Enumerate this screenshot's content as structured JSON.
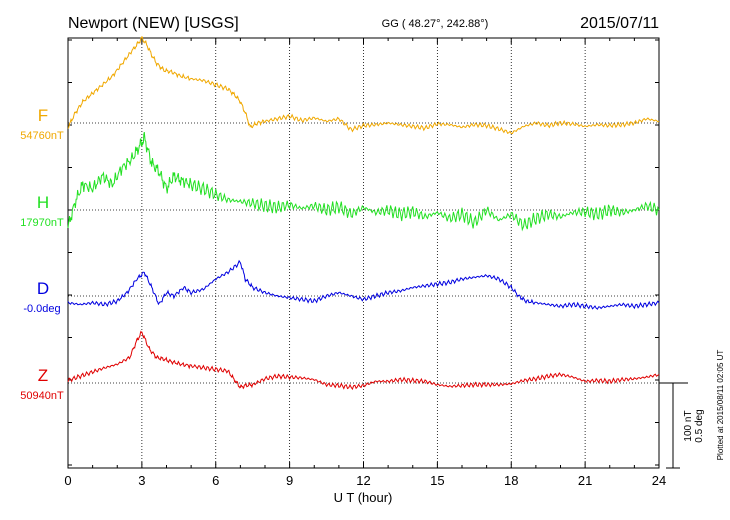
{
  "header": {
    "station": "Newport (NEW)  [USGS]",
    "coords": "GG ( 48.27°, 242.88°)",
    "date": "2015/07/11"
  },
  "side_note": "Plotted at 2015/08/11 02:05 UT",
  "scale_labels": [
    "100 nT",
    "0.5 deg"
  ],
  "colors": {
    "F": "#f0a800",
    "H": "#22e022",
    "D": "#0000e0",
    "Z": "#e00000"
  },
  "chart_data": {
    "type": "line",
    "title": "Newport (NEW)  [USGS]",
    "xlabel": "U T (hour)",
    "ylabel": "",
    "xlim": [
      0,
      24
    ],
    "x_ticks": [
      0,
      3,
      6,
      9,
      12,
      15,
      18,
      21,
      24
    ],
    "x_tick_labels": [
      "0",
      "3",
      "6",
      "9",
      "12",
      "15",
      "18",
      "21",
      "24"
    ],
    "grid": "vertical dotted every 3 h",
    "scale_bar": {
      "nT": 100,
      "deg": 0.5
    },
    "series": [
      {
        "name": "F",
        "baseline_label": "54760nT",
        "unit": "nT",
        "x": [
          0,
          0.3,
          0.6,
          1,
          1.4,
          1.8,
          2.2,
          2.6,
          2.8,
          3.0,
          3.2,
          3.4,
          3.6,
          3.9,
          4.2,
          4.6,
          5,
          5.5,
          6,
          6.5,
          6.8,
          7,
          7.2,
          7.4,
          7.7,
          8,
          8.5,
          9,
          9.5,
          10,
          10.5,
          11,
          11.5,
          12,
          12.5,
          13,
          13.5,
          14,
          14.5,
          15,
          15.5,
          16,
          16.5,
          17,
          17.5,
          18,
          18.5,
          19,
          19.5,
          20,
          20.5,
          21,
          21.5,
          22,
          22.5,
          23,
          23.5,
          24
        ],
        "y": [
          -5,
          12,
          25,
          35,
          45,
          55,
          70,
          85,
          92,
          100,
          92,
          80,
          70,
          62,
          60,
          55,
          52,
          50,
          45,
          40,
          32,
          25,
          12,
          -5,
          0,
          2,
          5,
          8,
          3,
          6,
          2,
          5,
          -8,
          -3,
          -2,
          0,
          -2,
          -4,
          -6,
          -1,
          -2,
          -5,
          -2,
          -3,
          -7,
          -12,
          -4,
          0,
          -3,
          0,
          -1,
          -4,
          -2,
          -3,
          -2,
          0,
          5,
          2
        ]
      },
      {
        "name": "H",
        "baseline_label": "17970nT",
        "unit": "nT",
        "x": [
          0,
          0.3,
          0.6,
          1,
          1.4,
          1.8,
          2.2,
          2.6,
          2.9,
          3.1,
          3.4,
          3.7,
          4.0,
          4.3,
          4.6,
          5,
          5.5,
          6,
          6.5,
          7,
          7.5,
          8,
          8.5,
          9,
          9.5,
          10,
          10.5,
          11,
          11.5,
          12,
          12.5,
          13,
          13.5,
          14,
          14.5,
          15,
          15.5,
          16,
          16.5,
          17,
          17.5,
          18,
          18.5,
          19,
          19.5,
          20,
          20.5,
          21,
          21.5,
          22,
          22.5,
          23,
          23.5,
          24
        ],
        "y": [
          -20,
          10,
          30,
          25,
          40,
          30,
          50,
          60,
          75,
          85,
          55,
          45,
          25,
          40,
          35,
          30,
          25,
          18,
          12,
          10,
          8,
          5,
          3,
          6,
          2,
          5,
          0,
          4,
          -5,
          3,
          -3,
          0,
          -5,
          -2,
          -8,
          -3,
          -10,
          -5,
          -15,
          0,
          -12,
          -5,
          -18,
          -10,
          -5,
          -8,
          -3,
          -2,
          -5,
          0,
          -3,
          0,
          5,
          0
        ]
      },
      {
        "name": "D",
        "baseline_label": "-0.0deg",
        "unit": "deg",
        "x": [
          0,
          0.5,
          1,
          1.5,
          2,
          2.4,
          2.8,
          3.1,
          3.4,
          3.7,
          4.0,
          4.3,
          4.7,
          5,
          5.5,
          6,
          6.5,
          7,
          7.2,
          7.5,
          8,
          8.5,
          9,
          9.5,
          10,
          10.5,
          11,
          11.5,
          12,
          12.5,
          13,
          13.5,
          14,
          14.5,
          15,
          15.5,
          16,
          16.5,
          17,
          17.5,
          18,
          18.3,
          18.6,
          19,
          19.5,
          20,
          20.5,
          21,
          21.5,
          22,
          22.5,
          23,
          23.5,
          24
        ],
        "y": [
          -0.04,
          -0.05,
          -0.04,
          -0.05,
          -0.03,
          0.02,
          0.1,
          0.14,
          0.05,
          -0.05,
          0.02,
          0.0,
          0.05,
          0.02,
          0.04,
          0.1,
          0.14,
          0.2,
          0.1,
          0.05,
          0.02,
          0.0,
          -0.01,
          -0.02,
          -0.03,
          0.0,
          0.02,
          0.0,
          -0.02,
          0.0,
          0.02,
          0.03,
          0.05,
          0.06,
          0.07,
          0.08,
          0.1,
          0.11,
          0.12,
          0.1,
          0.05,
          0.0,
          -0.03,
          -0.04,
          -0.05,
          -0.06,
          -0.05,
          -0.06,
          -0.07,
          -0.06,
          -0.05,
          -0.06,
          -0.05,
          -0.04
        ]
      },
      {
        "name": "Z",
        "baseline_label": "50940nT",
        "unit": "nT",
        "x": [
          0,
          0.5,
          1,
          1.5,
          2,
          2.5,
          2.8,
          3.0,
          3.3,
          3.6,
          3.9,
          4.2,
          4.6,
          5,
          5.5,
          6,
          6.5,
          6.8,
          7.0,
          7.2,
          7.5,
          8,
          8.5,
          9,
          9.5,
          10,
          10.5,
          11,
          11.5,
          12,
          12.5,
          13,
          13.5,
          14,
          14.5,
          15,
          15.5,
          16,
          16.5,
          17,
          17.5,
          18,
          18.5,
          19,
          19.5,
          20,
          20.5,
          21,
          21.5,
          22,
          22.5,
          23,
          23.5,
          24
        ],
        "y": [
          3,
          8,
          13,
          18,
          22,
          30,
          50,
          60,
          40,
          30,
          28,
          25,
          22,
          20,
          18,
          16,
          14,
          2,
          -5,
          -3,
          -2,
          5,
          8,
          7,
          6,
          4,
          -2,
          -3,
          -5,
          -3,
          2,
          2,
          4,
          3,
          2,
          -2,
          -4,
          -3,
          -2,
          -2,
          -2,
          -1,
          3,
          5,
          8,
          10,
          7,
          2,
          3,
          2,
          4,
          5,
          7,
          10
        ]
      }
    ]
  }
}
